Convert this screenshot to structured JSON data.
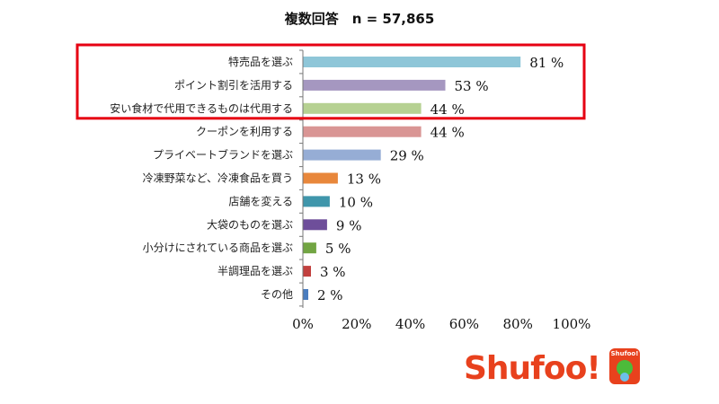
{
  "chart_data": {
    "type": "bar",
    "orientation": "horizontal",
    "title": "複数回答　n = 57,865",
    "categories": [
      "特売品を選ぶ",
      "ポイント割引を活用する",
      "安い食材で代用できるものは代用する",
      "クーポンを利用する",
      "プライベートブランドを選ぶ",
      "冷凍野菜など、冷凍食品を買う",
      "店舗を変える",
      "大袋のものを選ぶ",
      "小分けにされている商品を選ぶ",
      "半調理品を選ぶ",
      "その他"
    ],
    "values": [
      81,
      53,
      44,
      44,
      29,
      13,
      10,
      9,
      5,
      3,
      2
    ],
    "value_labels": [
      "81 %",
      "53 %",
      "44 %",
      "44 %",
      "29 %",
      "13 %",
      "10 %",
      "9 %",
      "5 %",
      "3 %",
      "2 %"
    ],
    "bar_colors": [
      "#8ec6d8",
      "#a597c0",
      "#b6d192",
      "#d99594",
      "#96add5",
      "#e8873b",
      "#3f96ab",
      "#6e4e9a",
      "#72a543",
      "#c2403e",
      "#4a7dbf"
    ],
    "xlim": [
      0,
      100
    ],
    "xticks": [
      "0%",
      "20%",
      "40%",
      "60%",
      "80%",
      "100%"
    ],
    "xtick_values": [
      0,
      20,
      40,
      60,
      80,
      100
    ],
    "grid": false,
    "highlight": {
      "rows": [
        0,
        1,
        2
      ],
      "color": "#e60012"
    }
  },
  "logo": {
    "text": "Shufoo!",
    "badge_text": "Shufoo!",
    "color": "#e8411d"
  }
}
